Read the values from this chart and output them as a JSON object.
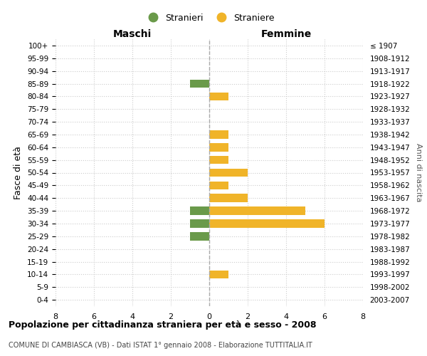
{
  "age_groups": [
    "100+",
    "95-99",
    "90-94",
    "85-89",
    "80-84",
    "75-79",
    "70-74",
    "65-69",
    "60-64",
    "55-59",
    "50-54",
    "45-49",
    "40-44",
    "35-39",
    "30-34",
    "25-29",
    "20-24",
    "15-19",
    "10-14",
    "5-9",
    "0-4"
  ],
  "birth_years": [
    "≤ 1907",
    "1908-1912",
    "1913-1917",
    "1918-1922",
    "1923-1927",
    "1928-1932",
    "1933-1937",
    "1938-1942",
    "1943-1947",
    "1948-1952",
    "1953-1957",
    "1958-1962",
    "1963-1967",
    "1968-1972",
    "1973-1977",
    "1978-1982",
    "1983-1987",
    "1988-1992",
    "1993-1997",
    "1998-2002",
    "2003-2007"
  ],
  "maschi": [
    0,
    0,
    0,
    1,
    0,
    0,
    0,
    0,
    0,
    0,
    0,
    0,
    0,
    1,
    1,
    1,
    0,
    0,
    0,
    0,
    0
  ],
  "femmine": [
    0,
    0,
    0,
    0,
    1,
    0,
    0,
    1,
    1,
    1,
    2,
    1,
    2,
    5,
    6,
    0,
    0,
    0,
    1,
    0,
    0
  ],
  "color_maschi": "#6a9a4a",
  "color_femmine": "#f0b429",
  "xlim": 8,
  "title_main": "Popolazione per cittadinanza straniera per età e sesso - 2008",
  "title_sub": "COMUNE DI CAMBIASCA (VB) - Dati ISTAT 1° gennaio 2008 - Elaborazione TUTTITALIA.IT",
  "label_maschi": "Maschi",
  "label_femmine": "Femmine",
  "legend_stranieri": "Stranieri",
  "legend_straniere": "Straniere",
  "ylabel_left": "Fasce di età",
  "ylabel_right": "Anni di nascita",
  "background_color": "#ffffff",
  "grid_color": "#cccccc"
}
